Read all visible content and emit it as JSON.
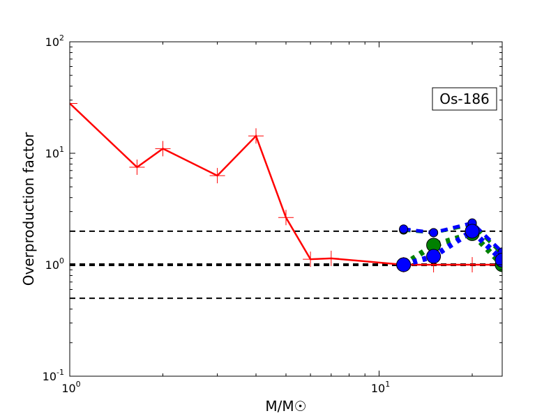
{
  "chart_data": {
    "type": "line",
    "xlabel": "M/M☉",
    "ylabel": "Overproduction factor",
    "xscale": "log",
    "yscale": "log",
    "xlim": [
      1,
      25
    ],
    "ylim": [
      0.1,
      100
    ],
    "x_tick_labels": [
      {
        "value": 1,
        "base": "10",
        "exp": "0"
      },
      {
        "value": 10,
        "base": "10",
        "exp": "1"
      }
    ],
    "y_tick_labels": [
      {
        "value": 0.1,
        "base": "10",
        "exp": "-1"
      },
      {
        "value": 1,
        "base": "10",
        "exp": "0"
      },
      {
        "value": 10,
        "base": "10",
        "exp": "1"
      },
      {
        "value": 100,
        "base": "10",
        "exp": "2"
      }
    ],
    "annotation": "Os-186",
    "hlines": [
      {
        "y": 2.0,
        "style": "dashed"
      },
      {
        "y": 1.0,
        "style": "dashed-thick"
      },
      {
        "y": 0.5,
        "style": "dashed"
      }
    ],
    "series": [
      {
        "color": "#ff0000",
        "style": "solid",
        "marker": "+",
        "x": [
          1,
          1.65,
          2,
          3,
          4,
          5,
          6,
          7,
          12,
          15,
          20,
          25
        ],
        "y": [
          28,
          7.5,
          11,
          6.3,
          14.3,
          2.65,
          1.12,
          1.14,
          1.0,
          1.0,
          1.0,
          1.0
        ]
      },
      {
        "color": "#008000",
        "style": "dashed",
        "marker": "o-small",
        "x": [
          12,
          15,
          20,
          25
        ],
        "y": [
          2.05,
          1.94,
          2.3,
          1.25
        ]
      },
      {
        "color": "#0000ff",
        "style": "dashed",
        "marker": "o-small",
        "x": [
          12,
          15,
          20,
          25
        ],
        "y": [
          2.09,
          1.94,
          2.37,
          1.3
        ]
      },
      {
        "color": "#008000",
        "style": "dotted-thick",
        "marker": "o-large",
        "x": [
          12,
          15,
          20,
          25
        ],
        "y": [
          1.0,
          1.5,
          1.9,
          1.0
        ]
      },
      {
        "color": "#0000ff",
        "style": "dotted-thick",
        "marker": "o-large",
        "x": [
          12,
          15,
          20,
          25
        ],
        "y": [
          1.0,
          1.19,
          2.0,
          1.1
        ]
      }
    ]
  }
}
